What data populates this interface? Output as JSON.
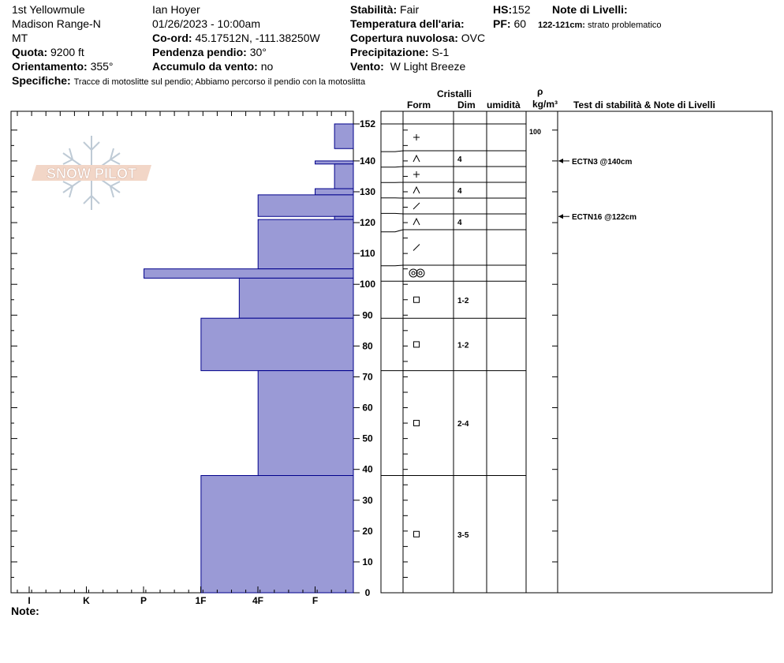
{
  "header": {
    "location": "1st Yellowmule",
    "range": "Madison Range-N",
    "state": "MT",
    "elevation_label": "Quota:",
    "elevation_value": "9200 ft",
    "aspect_label": "Orientamento:",
    "aspect_value": "355°",
    "observer": "Ian Hoyer",
    "datetime": "01/26/2023 - 10:00am",
    "coord_label": "Co-ord:",
    "coord_value": "45.17512N, -111.38250W",
    "slope_label": "Pendenza pendio:",
    "slope_value": "30°",
    "wind_loading_label": "Accumulo da vento:",
    "wind_loading_value": "no",
    "stability_label": "Stabilità:",
    "stability_value": "Fair",
    "air_temp_label": "Temperatura dell'aria:",
    "sky_label": "Copertura nuvolosa:",
    "sky_value": "OVC",
    "precip_label": "Precipitazione:",
    "precip_value": "S-1",
    "wind_label": "Vento:",
    "wind_value": "W Light Breeze",
    "hs_label": "HS:",
    "hs_value": "152",
    "pf_label": "PF:",
    "pf_value": "60",
    "layer_notes_label": "Note di Livelli:",
    "layer_note_depth": "122-121cm:",
    "layer_note_text": "strato problematico",
    "specifics_label": "Specifiche:",
    "specifics_text": "Tracce di motoslitte sul pendio; Abbiamo percorso il pendio con la motoslitta",
    "notes_label": "Note:"
  },
  "logo": {
    "text": "SNOW PILOT"
  },
  "columns": {
    "crystals": "Cristalli",
    "form": "Form",
    "size": "Dim",
    "moisture": "umidità",
    "rho": "ρ",
    "density_unit": "kg/m³",
    "stability": "Test di stabilità & Note di Livelli"
  },
  "colors": {
    "hardness_fill": "#9a9ad6",
    "hardness_stroke": "#00008b"
  },
  "chart_data": {
    "type": "bar",
    "title": "",
    "xlabel": "",
    "ylabel": "",
    "ylim": [
      0,
      152
    ],
    "yticks": [
      0,
      10,
      20,
      30,
      40,
      50,
      60,
      70,
      80,
      90,
      100,
      110,
      120,
      130,
      140,
      152
    ],
    "hardness_ticks": [
      "I",
      "K",
      "P",
      "1F",
      "4F",
      "F"
    ],
    "hardness_scale_max": 6,
    "layers": [
      {
        "top": 152,
        "bottom": 144,
        "hardness": "F-",
        "hardness_value": 0.33
      },
      {
        "top": 140,
        "bottom": 139,
        "hardness": "F",
        "hardness_value": 0.67
      },
      {
        "top": 139,
        "bottom": 131,
        "hardness": "F-",
        "hardness_value": 0.33
      },
      {
        "top": 131,
        "bottom": 129,
        "hardness": "F",
        "hardness_value": 0.67
      },
      {
        "top": 129,
        "bottom": 122,
        "hardness": "4F",
        "hardness_value": 1.67
      },
      {
        "top": 122,
        "bottom": 121,
        "hardness": "F-",
        "hardness_value": 0.33
      },
      {
        "top": 121,
        "bottom": 105,
        "hardness": "4F",
        "hardness_value": 1.67
      },
      {
        "top": 105,
        "bottom": 102,
        "hardness": "P",
        "hardness_value": 3.67
      },
      {
        "top": 102,
        "bottom": 89,
        "hardness": "4F-",
        "hardness_value": 2.0
      },
      {
        "top": 89,
        "bottom": 72,
        "hardness": "1F",
        "hardness_value": 2.67
      },
      {
        "top": 72,
        "bottom": 38,
        "hardness": "4F",
        "hardness_value": 1.67
      },
      {
        "top": 38,
        "bottom": 0,
        "hardness": "1F",
        "hardness_value": 2.67
      }
    ],
    "crystal_rows": [
      {
        "top": 152,
        "bottom": 143,
        "form": "+",
        "size": ""
      },
      {
        "top": 143,
        "bottom": 138,
        "form": "^",
        "size": "4"
      },
      {
        "top": 138,
        "bottom": 133,
        "form": "+",
        "size": ""
      },
      {
        "top": 133,
        "bottom": 128,
        "form": "^",
        "size": "4"
      },
      {
        "top": 128,
        "bottom": 123,
        "form": "/",
        "size": ""
      },
      {
        "top": 123,
        "bottom": 117,
        "form": "^",
        "size": "4"
      },
      {
        "top": 117,
        "bottom": 106,
        "form": "/",
        "size": ""
      },
      {
        "top": 106,
        "bottom": 101,
        "form": "oo",
        "size": ""
      },
      {
        "top": 101,
        "bottom": 89,
        "form": "sq",
        "size": "1-2"
      },
      {
        "top": 89,
        "bottom": 72,
        "form": "sq",
        "size": "1-2"
      },
      {
        "top": 72,
        "bottom": 38,
        "form": "sq",
        "size": "2-4"
      },
      {
        "top": 38,
        "bottom": 0,
        "form": "sq",
        "size": "3-5"
      }
    ],
    "density": [
      {
        "depth": 152,
        "value": "100"
      }
    ],
    "tests": [
      {
        "depth": 140,
        "label": "ECTN3 @140cm"
      },
      {
        "depth": 122,
        "label": "ECTN16 @122cm"
      }
    ]
  }
}
